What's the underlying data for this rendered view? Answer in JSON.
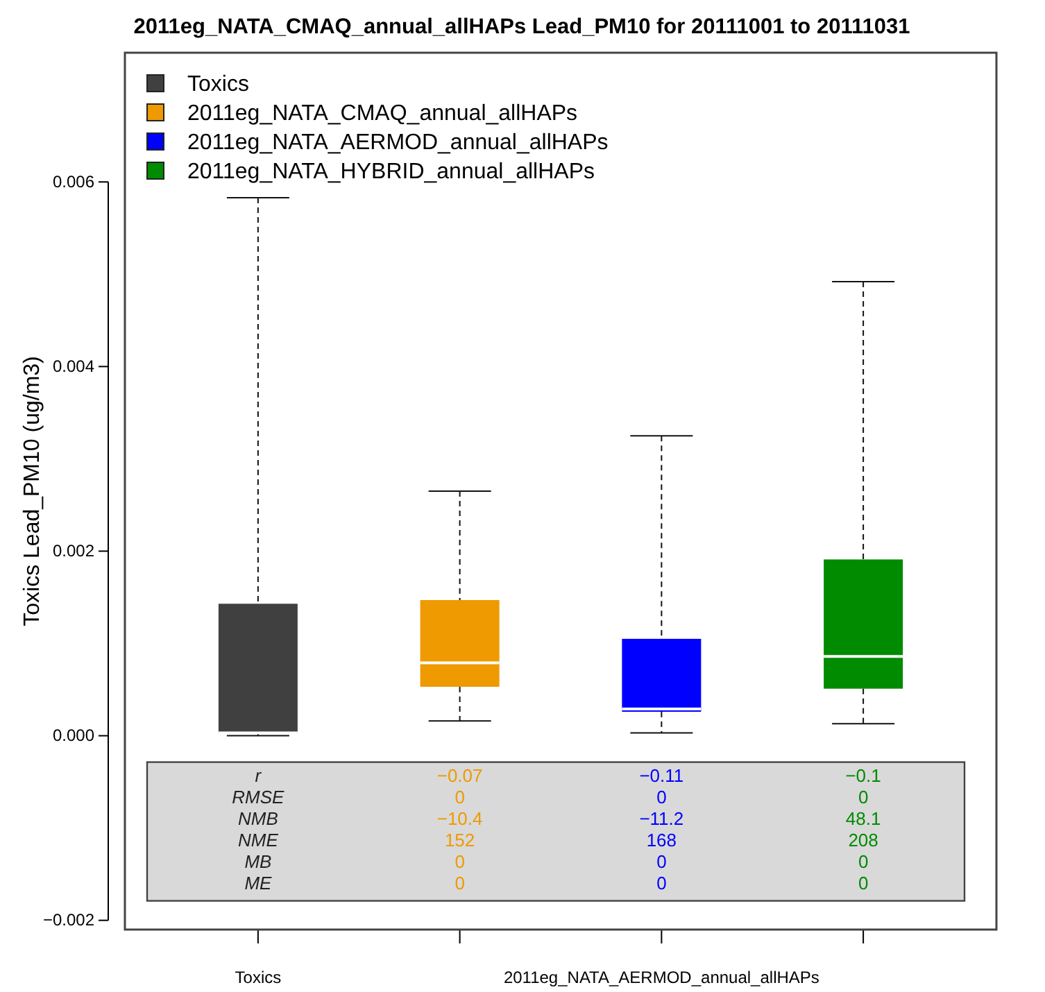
{
  "chart_data": {
    "type": "box",
    "title": "2011eg_NATA_CMAQ_annual_allHAPs Lead_PM10 for 20111001 to 20111031",
    "ylabel": "Toxics Lead_PM10 (ug/m3)",
    "categories": [
      "Toxics",
      null,
      "2011eg_NATA_AERMOD_annual_allHAPs",
      null
    ],
    "series": [
      {
        "name": "Toxics",
        "color": "#404040",
        "boxes": [
          {
            "low": 0,
            "q1": 2e-05,
            "median": 3e-05,
            "q3": 0.00143,
            "high": 0.00583
          },
          null,
          null,
          null
        ]
      },
      {
        "name": "2011eg_NATA_CMAQ_annual_allHAPs",
        "color": "#ee9a00",
        "boxes": [
          null,
          {
            "low": 0.00016,
            "q1": 0.00053,
            "median": 0.00079,
            "q3": 0.00147,
            "high": 0.00265
          },
          null,
          null
        ]
      },
      {
        "name": "2011eg_NATA_AERMOD_annual_allHAPs",
        "color": "#0000ff",
        "boxes": [
          null,
          null,
          {
            "low": 3e-05,
            "q1": 0.00026,
            "median": 0.00029,
            "q3": 0.00105,
            "high": 0.00325
          },
          null
        ]
      },
      {
        "name": "2011eg_NATA_HYBRID_annual_allHAPs",
        "color": "#008b00",
        "boxes": [
          null,
          null,
          null,
          {
            "low": 0.00013,
            "q1": 0.00051,
            "median": 0.00086,
            "q3": 0.00191,
            "high": 0.00492
          }
        ]
      }
    ],
    "ylim": [
      -0.0021,
      0.0074
    ],
    "yticks": [
      {
        "value": -0.002,
        "label": "−0.002"
      },
      {
        "value": 0,
        "label": "0.000"
      },
      {
        "value": 0.002,
        "label": "0.002"
      },
      {
        "value": 0.004,
        "label": "0.004"
      },
      {
        "value": 0.006,
        "label": "0.006"
      }
    ],
    "legend": "top left",
    "annotations": [
      "r",
      "RMSE",
      "NMB",
      "NME",
      "MB",
      "ME",
      "−0.07",
      "0",
      "−10.4",
      "152",
      "0",
      "0",
      "−0.11",
      "0",
      "−11.2",
      "168",
      "0",
      "0",
      "−0.1",
      "0",
      "48.1",
      "208",
      "0",
      "0"
    ]
  }
}
